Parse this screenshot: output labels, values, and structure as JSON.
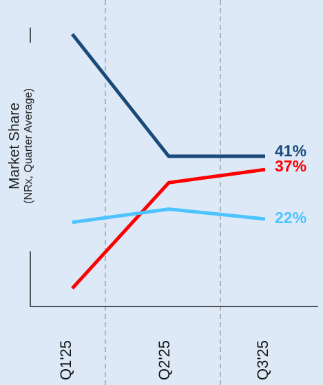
{
  "chart_data": {
    "type": "line",
    "y_label": "Market Share",
    "y_sublabel": "(NRx, Quarter Average)",
    "categories": [
      "Q1'25",
      "Q2'25",
      "Q3'25"
    ],
    "series": [
      {
        "color": "#1a4a7a",
        "values": [
          78,
          41,
          41
        ],
        "value_labels": [
          null,
          null,
          "41%"
        ]
      },
      {
        "color": "#ff0000",
        "values": [
          1,
          33,
          37
        ],
        "value_labels": [
          null,
          null,
          "37%"
        ]
      },
      {
        "color": "#4dc3ff",
        "values": [
          21,
          25,
          22
        ],
        "value_labels": [
          null,
          null,
          "22%"
        ]
      }
    ],
    "ylim": [
      -4.5,
      80
    ]
  }
}
